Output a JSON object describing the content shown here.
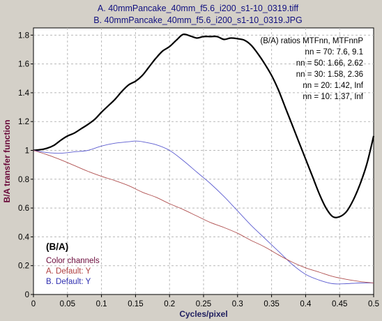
{
  "titles": {
    "line_a": "A.  40mmPancake_40mm_f5.6_i200_s1-10_0319.tiff",
    "line_b": "B.  40mmPancake_40mm_f5.6_i200_s1-10_0319.JPG"
  },
  "annotations": {
    "ratio_header": "(B/A) ratios  MTFnn,  MTFnnP",
    "ratio_rows": [
      "nn = 70:  7.6,  9.1",
      "nn = 50:  1.66,  2.62",
      "nn = 30:  1.58,  2.36",
      "nn = 20:  1.42,  Inf",
      "nn = 10:  1.37,  Inf"
    ]
  },
  "legend": {
    "heading": "(B/A)",
    "subheading": "Color channels",
    "entries": [
      {
        "label": "A.  Default: Y",
        "color": "#b04040"
      },
      {
        "label": "B.  Default: Y",
        "color": "#3030b0"
      }
    ]
  },
  "chart_data": {
    "type": "line",
    "xlabel": "Cycles/pixel",
    "ylabel": "B/A transfer function",
    "xlim": [
      0,
      0.5
    ],
    "ylim": [
      0,
      1.85
    ],
    "grid": true,
    "legend_position": "bottom-left",
    "x_ticks": [
      "0",
      "0.05",
      "0.1",
      "0.15",
      "0.2",
      "0.25",
      "0.3",
      "0.35",
      "0.4",
      "0.45",
      "0.5"
    ],
    "y_ticks": [
      "0",
      "0.2",
      "0.4",
      "0.6",
      "0.8",
      "1",
      "1.2",
      "1.4",
      "1.6",
      "1.8"
    ],
    "series": [
      {
        "name": "",
        "color": "#000000",
        "x": [
          0,
          0.01,
          0.02,
          0.03,
          0.04,
          0.05,
          0.06,
          0.07,
          0.08,
          0.09,
          0.1,
          0.11,
          0.12,
          0.13,
          0.14,
          0.15,
          0.16,
          0.17,
          0.18,
          0.19,
          0.2,
          0.21,
          0.22,
          0.23,
          0.24,
          0.25,
          0.26,
          0.27,
          0.28,
          0.29,
          0.3,
          0.31,
          0.32,
          0.33,
          0.34,
          0.35,
          0.36,
          0.37,
          0.38,
          0.39,
          0.4,
          0.41,
          0.42,
          0.43,
          0.44,
          0.45,
          0.46,
          0.47,
          0.48,
          0.49,
          0.5
        ],
        "values": [
          1.0,
          1.005,
          1.015,
          1.035,
          1.07,
          1.1,
          1.12,
          1.15,
          1.18,
          1.215,
          1.265,
          1.31,
          1.355,
          1.41,
          1.455,
          1.48,
          1.52,
          1.58,
          1.64,
          1.69,
          1.72,
          1.765,
          1.805,
          1.795,
          1.78,
          1.79,
          1.79,
          1.79,
          1.77,
          1.78,
          1.775,
          1.765,
          1.73,
          1.67,
          1.6,
          1.52,
          1.42,
          1.3,
          1.18,
          1.06,
          0.94,
          0.82,
          0.7,
          0.6,
          0.54,
          0.54,
          0.575,
          0.655,
          0.765,
          0.905,
          1.1
        ]
      },
      {
        "name": "",
        "color": "#5c5cd0",
        "x": [
          0,
          0.02,
          0.04,
          0.06,
          0.08,
          0.1,
          0.12,
          0.14,
          0.15,
          0.16,
          0.18,
          0.2,
          0.22,
          0.24,
          0.26,
          0.28,
          0.3,
          0.32,
          0.34,
          0.36,
          0.38,
          0.4,
          0.42,
          0.44,
          0.46,
          0.48,
          0.5
        ],
        "values": [
          1.0,
          0.985,
          0.98,
          0.99,
          1.0,
          1.03,
          1.05,
          1.06,
          1.065,
          1.06,
          1.04,
          1.0,
          0.93,
          0.85,
          0.77,
          0.68,
          0.58,
          0.48,
          0.39,
          0.3,
          0.21,
          0.14,
          0.1,
          0.075,
          0.075,
          0.08,
          0.08
        ]
      },
      {
        "name": "",
        "color": "#b05050",
        "x": [
          0,
          0.02,
          0.04,
          0.06,
          0.08,
          0.1,
          0.12,
          0.14,
          0.16,
          0.18,
          0.2,
          0.22,
          0.24,
          0.26,
          0.28,
          0.3,
          0.32,
          0.34,
          0.36,
          0.38,
          0.4,
          0.42,
          0.44,
          0.46,
          0.48,
          0.5
        ],
        "values": [
          1.0,
          0.97,
          0.935,
          0.895,
          0.855,
          0.82,
          0.79,
          0.755,
          0.71,
          0.675,
          0.63,
          0.59,
          0.545,
          0.5,
          0.465,
          0.425,
          0.375,
          0.33,
          0.275,
          0.225,
          0.185,
          0.155,
          0.125,
          0.105,
          0.09,
          0.08
        ]
      }
    ]
  }
}
